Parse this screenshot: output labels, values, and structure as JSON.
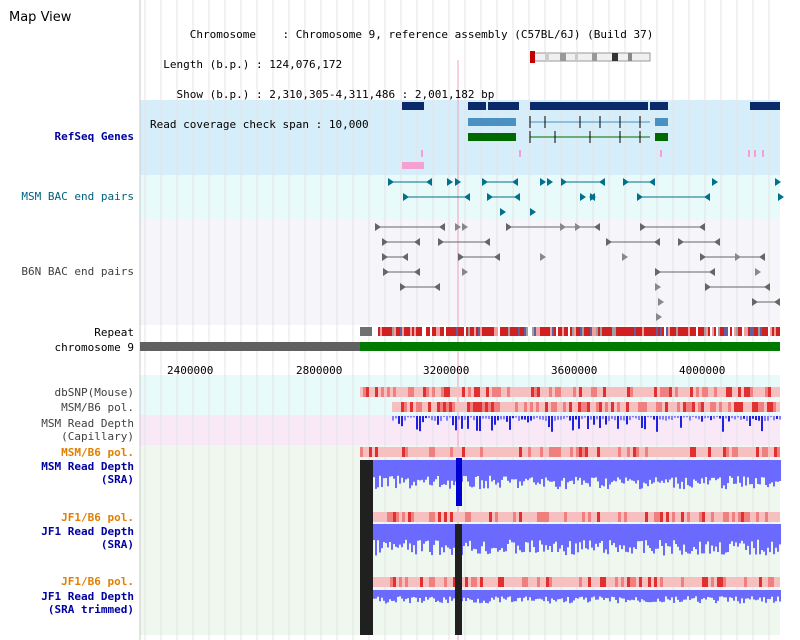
{
  "title": "Map View",
  "header": {
    "chromosome_label": "Chromosome",
    "chromosome_value": "Chromosome 9, reference assembly (C57BL/6J) (Build 37)",
    "length_label": "Length (b.p.)",
    "length_value": "124,076,172",
    "show_label": "Show (b.p.)",
    "show_value": "2,310,305-4,311,486 : 2,001,182 bp",
    "coverage_label": "Read coverage check span",
    "coverage_value": "10,000"
  },
  "tracks": {
    "refseq": "RefSeq Genes",
    "msm_bac": "MSM BAC end pairs",
    "b6n_bac": "B6N BAC end pairs",
    "repeat": "Repeat",
    "chromosome": "chromosome 9",
    "dbsnp": "dbSNP(Mouse)",
    "msm_b6_pol_1": "MSM/B6 pol.",
    "msm_read_depth_cap_1": "MSM Read Depth",
    "msm_read_depth_cap_2": "(Capillary)",
    "msm_b6_pol_2": "MSM/B6 pol.",
    "msm_read_depth_sra_1": "MSM Read Depth",
    "msm_read_depth_sra_2": "(SRA)",
    "jf1_b6_pol_1": "JF1/B6 pol.",
    "jf1_read_depth_sra_1": "JF1 Read Depth",
    "jf1_read_depth_sra_2": "(SRA)",
    "jf1_b6_pol_2": "JF1/B6 pol.",
    "jf1_read_depth_trim_1": "JF1 Read Depth",
    "jf1_read_depth_trim_2": "(SRA trimmed)"
  },
  "axis_ticks": [
    "2400000",
    "2800000",
    "3200000",
    "3600000",
    "4000000"
  ],
  "colors": {
    "refseq_bg": "#d6eefa",
    "bac_bg": "#e8fafa",
    "b6n_bg": "#f5f5fa",
    "msm_cap_bg": "#f8e8f8",
    "sra_bg": "#eef8ee",
    "chrom_green": "#007a00",
    "label_blue": "#0000a0",
    "label_teal": "#006080",
    "label_orange": "#e08000",
    "depth_blue": "#6a6aff",
    "pol_pink": "#f7c0c0",
    "pol_red": "#e03030"
  }
}
